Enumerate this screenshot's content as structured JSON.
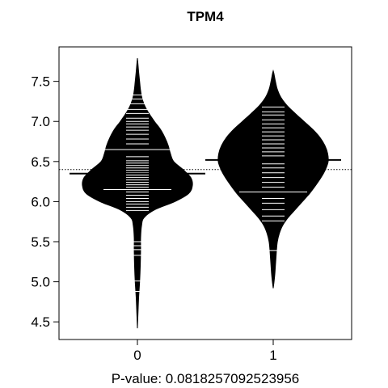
{
  "chart_data": {
    "type": "beanplot",
    "title": "TPM4",
    "xlabel": "P-value: 0.0818257092523956",
    "ylabel": "",
    "categories": [
      "0",
      "1"
    ],
    "ylim": [
      4.28,
      7.93
    ],
    "yticks": [
      4.5,
      5.0,
      5.5,
      6.0,
      6.5,
      7.0,
      7.5
    ],
    "ytick_labels": [
      "4.5",
      "5.0",
      "5.5",
      "6.0",
      "6.5",
      "7.0",
      "7.5"
    ],
    "overall_mean": 6.4,
    "overall_mean_line": "dotted",
    "grid": false,
    "legend": "none",
    "colors": {
      "bean_fill": "#000000",
      "obs_line": "#ffffff",
      "axis": "#000000",
      "background": "#ffffff"
    },
    "beans": [
      {
        "category": "0",
        "mean": 6.35,
        "range": [
          4.42,
          7.79
        ],
        "density": [
          [
            4.42,
            0.0
          ],
          [
            4.6,
            0.01
          ],
          [
            4.8,
            0.022
          ],
          [
            5.0,
            0.04
          ],
          [
            5.2,
            0.052
          ],
          [
            5.4,
            0.058
          ],
          [
            5.55,
            0.058
          ],
          [
            5.7,
            0.075
          ],
          [
            5.8,
            0.12
          ],
          [
            5.9,
            0.32
          ],
          [
            6.0,
            0.68
          ],
          [
            6.1,
            0.93
          ],
          [
            6.2,
            1.0
          ],
          [
            6.3,
            0.97
          ],
          [
            6.4,
            0.83
          ],
          [
            6.5,
            0.66
          ],
          [
            6.6,
            0.6
          ],
          [
            6.7,
            0.56
          ],
          [
            6.8,
            0.5
          ],
          [
            6.9,
            0.42
          ],
          [
            7.0,
            0.31
          ],
          [
            7.1,
            0.21
          ],
          [
            7.2,
            0.13
          ],
          [
            7.3,
            0.08
          ],
          [
            7.4,
            0.055
          ],
          [
            7.5,
            0.04
          ],
          [
            7.6,
            0.025
          ],
          [
            7.7,
            0.012
          ],
          [
            7.79,
            0.0
          ]
        ],
        "observations": [
          4.88,
          5.01,
          5.33,
          5.4,
          5.45,
          5.5,
          5.89,
          5.93,
          5.97,
          6.0,
          6.04,
          6.08,
          6.12,
          6.15,
          6.18,
          6.21,
          6.24,
          6.27,
          6.3,
          6.33,
          6.36,
          6.39,
          6.42,
          6.45,
          6.48,
          6.51,
          6.56,
          6.65,
          6.72,
          6.78,
          6.84,
          6.89,
          6.93,
          6.97,
          7.0,
          7.04,
          7.1,
          7.15,
          7.22,
          7.28,
          7.33
        ],
        "long_observations": [
          6.15,
          6.65
        ]
      },
      {
        "category": "1",
        "mean": 6.52,
        "range": [
          4.92,
          7.63
        ],
        "density": [
          [
            4.92,
            0.0
          ],
          [
            5.0,
            0.015
          ],
          [
            5.1,
            0.03
          ],
          [
            5.2,
            0.04
          ],
          [
            5.3,
            0.05
          ],
          [
            5.4,
            0.06
          ],
          [
            5.5,
            0.075
          ],
          [
            5.6,
            0.11
          ],
          [
            5.7,
            0.17
          ],
          [
            5.8,
            0.27
          ],
          [
            5.9,
            0.4
          ],
          [
            6.0,
            0.53
          ],
          [
            6.1,
            0.66
          ],
          [
            6.2,
            0.77
          ],
          [
            6.3,
            0.87
          ],
          [
            6.4,
            0.95
          ],
          [
            6.5,
            1.0
          ],
          [
            6.6,
            0.99
          ],
          [
            6.7,
            0.94
          ],
          [
            6.8,
            0.85
          ],
          [
            6.9,
            0.72
          ],
          [
            7.0,
            0.56
          ],
          [
            7.1,
            0.4
          ],
          [
            7.2,
            0.25
          ],
          [
            7.3,
            0.14
          ],
          [
            7.4,
            0.075
          ],
          [
            7.5,
            0.04
          ],
          [
            7.6,
            0.012
          ],
          [
            7.63,
            0.0
          ]
        ],
        "observations": [
          5.39,
          5.76,
          5.82,
          5.9,
          5.98,
          6.04,
          6.12,
          6.18,
          6.24,
          6.3,
          6.36,
          6.42,
          6.47,
          6.52,
          6.57,
          6.62,
          6.67,
          6.72,
          6.77,
          6.82,
          6.87,
          6.92,
          6.97,
          7.02,
          7.08,
          7.12,
          7.18
        ],
        "long_observations": [
          6.12
        ]
      }
    ]
  }
}
